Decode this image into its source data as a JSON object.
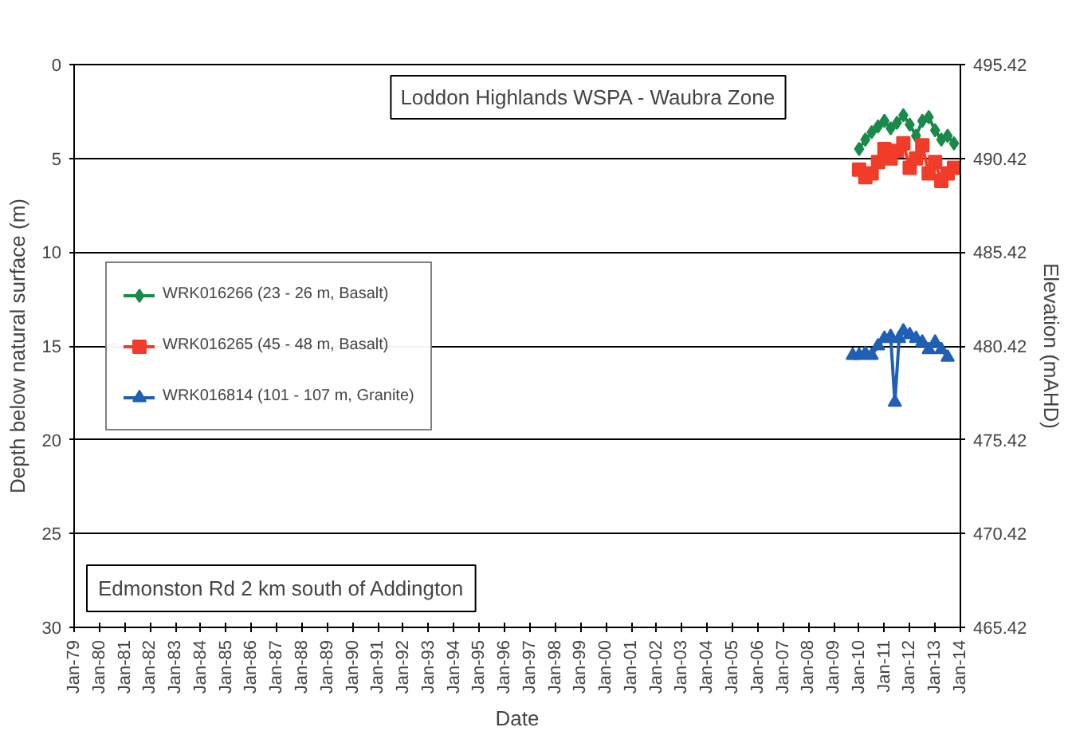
{
  "chart_data": {
    "type": "line",
    "title": "Loddon Highlands WSPA - Waubra Zone",
    "xlabel": "Date",
    "ylabel": "Depth below natural surface (m)",
    "y2label": "Elevation (mAHD)",
    "annotations": [
      "Edmonston Rd 2 km south of Addington"
    ],
    "xlim": [
      "1979-01",
      "2014-01"
    ],
    "xticks": [
      {
        "value": "1979-01",
        "label": "Jan-79"
      },
      {
        "value": "1980-01",
        "label": "Jan-80"
      },
      {
        "value": "1981-01",
        "label": "Jan-81"
      },
      {
        "value": "1982-01",
        "label": "Jan-82"
      },
      {
        "value": "1983-01",
        "label": "Jan-83"
      },
      {
        "value": "1984-01",
        "label": "Jan-84"
      },
      {
        "value": "1985-01",
        "label": "Jan-85"
      },
      {
        "value": "1986-01",
        "label": "Jan-86"
      },
      {
        "value": "1987-01",
        "label": "Jan-87"
      },
      {
        "value": "1988-01",
        "label": "Jan-88"
      },
      {
        "value": "1989-01",
        "label": "Jan-89"
      },
      {
        "value": "1990-01",
        "label": "Jan-90"
      },
      {
        "value": "1991-01",
        "label": "Jan-91"
      },
      {
        "value": "1992-01",
        "label": "Jan-92"
      },
      {
        "value": "1993-01",
        "label": "Jan-93"
      },
      {
        "value": "1994-01",
        "label": "Jan-94"
      },
      {
        "value": "1995-01",
        "label": "Jan-95"
      },
      {
        "value": "1996-01",
        "label": "Jan-96"
      },
      {
        "value": "1997-01",
        "label": "Jan-97"
      },
      {
        "value": "1998-01",
        "label": "Jan-98"
      },
      {
        "value": "1999-01",
        "label": "Jan-99"
      },
      {
        "value": "2000-01",
        "label": "Jan-00"
      },
      {
        "value": "2001-01",
        "label": "Jan-01"
      },
      {
        "value": "2002-01",
        "label": "Jan-02"
      },
      {
        "value": "2003-01",
        "label": "Jan-03"
      },
      {
        "value": "2004-01",
        "label": "Jan-04"
      },
      {
        "value": "2005-01",
        "label": "Jan-05"
      },
      {
        "value": "2006-01",
        "label": "Jan-06"
      },
      {
        "value": "2007-01",
        "label": "Jan-07"
      },
      {
        "value": "2008-01",
        "label": "Jan-08"
      },
      {
        "value": "2009-01",
        "label": "Jan-09"
      },
      {
        "value": "2010-01",
        "label": "Jan-10"
      },
      {
        "value": "2011-01",
        "label": "Jan-11"
      },
      {
        "value": "2012-01",
        "label": "Jan-12"
      },
      {
        "value": "2013-01",
        "label": "Jan-13"
      },
      {
        "value": "2014-01",
        "label": "Jan-14"
      }
    ],
    "ylim": [
      30,
      0
    ],
    "yticks": [
      0,
      5,
      10,
      15,
      20,
      25,
      30
    ],
    "y2lim": [
      465.42,
      495.42
    ],
    "y2ticks": [
      465.42,
      470.42,
      475.42,
      480.42,
      485.42,
      490.42,
      495.42
    ],
    "grid": "y",
    "legend": "left",
    "series": [
      {
        "name": "WRK016266 (23 - 26 m, Basalt)",
        "color": "#1a8a4a",
        "marker": "diamond",
        "x": [
          "2010-01",
          "2010-04",
          "2010-07",
          "2010-10",
          "2011-01",
          "2011-04",
          "2011-07",
          "2011-10",
          "2012-01",
          "2012-04",
          "2012-07",
          "2012-10",
          "2013-01",
          "2013-04",
          "2013-07",
          "2013-10"
        ],
        "values": [
          4.5,
          4.0,
          3.6,
          3.3,
          3.0,
          3.4,
          3.1,
          2.7,
          3.2,
          3.8,
          3.0,
          2.8,
          3.5,
          4.0,
          3.8,
          4.2
        ]
      },
      {
        "name": "WRK016265 (45 - 48 m, Basalt)",
        "color": "#f03c28",
        "marker": "square",
        "x": [
          "2010-01",
          "2010-04",
          "2010-07",
          "2010-10",
          "2011-01",
          "2011-04",
          "2011-07",
          "2011-10",
          "2012-01",
          "2012-04",
          "2012-07",
          "2012-10",
          "2013-01",
          "2013-04",
          "2013-07",
          "2013-10"
        ],
        "values": [
          5.6,
          6.0,
          5.8,
          5.2,
          4.5,
          5.0,
          4.6,
          4.2,
          5.5,
          5.0,
          4.3,
          5.8,
          5.2,
          6.2,
          5.8,
          5.5
        ]
      },
      {
        "name": "WRK016814 (101 - 107 m, Granite)",
        "color": "#1f5fb4",
        "marker": "triangle",
        "x": [
          "2009-10",
          "2010-01",
          "2010-04",
          "2010-07",
          "2010-10",
          "2011-01",
          "2011-04",
          "2011-06",
          "2011-08",
          "2011-10",
          "2012-01",
          "2012-04",
          "2012-07",
          "2012-10",
          "2013-01",
          "2013-04",
          "2013-07"
        ],
        "values": [
          15.5,
          15.5,
          15.4,
          15.5,
          15.0,
          14.6,
          14.5,
          18.0,
          14.6,
          14.2,
          14.4,
          14.6,
          14.8,
          15.2,
          14.8,
          15.2,
          15.6
        ]
      }
    ]
  }
}
